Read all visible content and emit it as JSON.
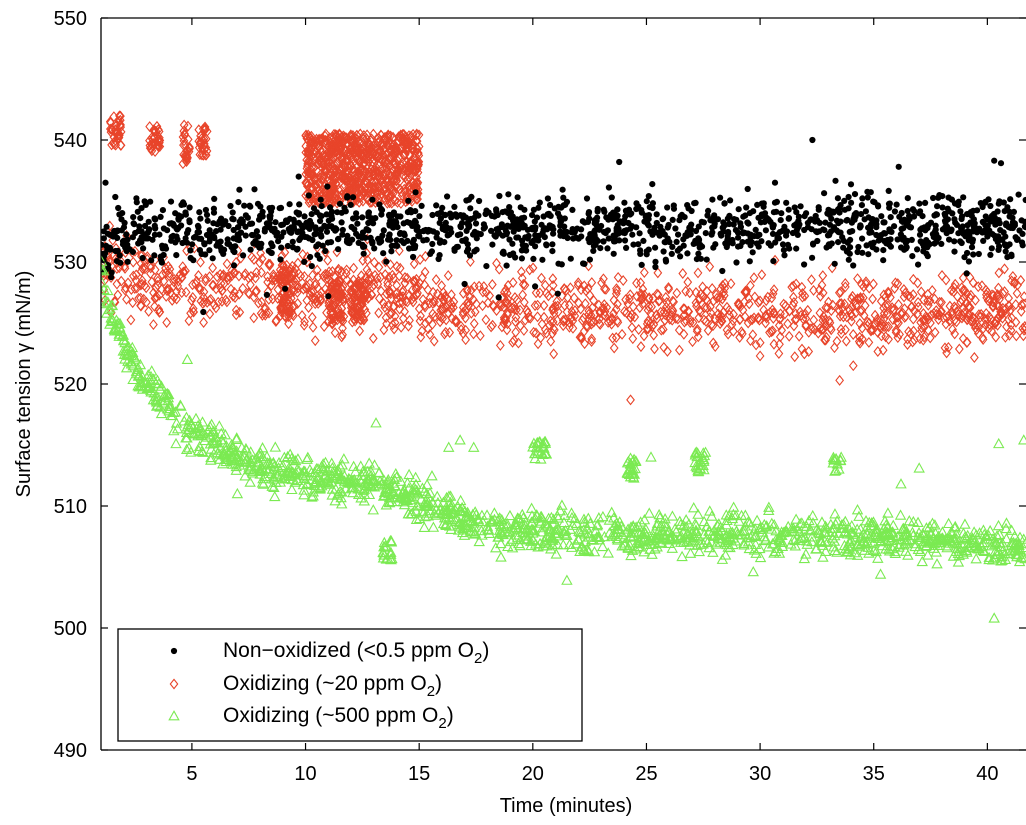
{
  "chart_data": {
    "type": "scatter",
    "title": "",
    "xlabel": "Time  (minutes)",
    "ylabel": "Surface tension γ  (mN/m)",
    "xlim": [
      1,
      41.7
    ],
    "ylim": [
      490,
      550
    ],
    "xticks": [
      5,
      10,
      15,
      20,
      25,
      30,
      35,
      40
    ],
    "yticks": [
      490,
      500,
      510,
      520,
      530,
      540,
      550
    ],
    "grid": false,
    "legend_position": "bottom-left",
    "series": [
      {
        "name": "Non−oxidized (<0.5 ppm O",
        "subscript": "2",
        "name_suffix": ")",
        "marker": "dot",
        "color": "#000000",
        "trend": {
          "x": [
            1.0,
            1.5,
            3,
            5,
            10,
            15,
            20,
            30,
            41.7
          ],
          "y": [
            530.5,
            532.0,
            532.5,
            532.6,
            532.7,
            532.8,
            532.8,
            532.9,
            533.0
          ]
        },
        "spread": 1.3,
        "outliers": [
          [
            1.2,
            536.5
          ],
          [
            9.7,
            537.0
          ],
          [
            23.8,
            538.2
          ],
          [
            32.3,
            540.0
          ],
          [
            36.1,
            537.8
          ],
          [
            40.3,
            538.3
          ],
          [
            40.6,
            538.1
          ],
          [
            17.0,
            528.2
          ],
          [
            18.5,
            527.1
          ],
          [
            20.1,
            528.0
          ],
          [
            21.1,
            527.4
          ],
          [
            11.0,
            527.2
          ],
          [
            5.5,
            525.9
          ],
          [
            8.3,
            527.3
          ],
          [
            9.1,
            527.8
          ]
        ]
      },
      {
        "name": "Oxidizing (~20 ppm O",
        "subscript": "2",
        "name_suffix": ")",
        "marker": "diamond",
        "color": "#e8442a",
        "trend": {
          "x": [
            1.0,
            1.8,
            5,
            10,
            14.9,
            15.1,
            20,
            30,
            41.7
          ],
          "y": [
            530.5,
            528.5,
            528.0,
            527.5,
            527.5,
            526.5,
            526.0,
            526.0,
            526.0
          ]
        },
        "spread": 1.5,
        "clusters": [
          {
            "x": [
              1.4,
              1.9
            ],
            "y": [
              539.5,
              542.0
            ]
          },
          {
            "x": [
              3.1,
              3.6
            ],
            "y": [
              539.0,
              541.2
            ]
          },
          {
            "x": [
              4.6,
              4.9
            ],
            "y": [
              538.0,
              541.3
            ]
          },
          {
            "x": [
              5.3,
              5.7
            ],
            "y": [
              538.6,
              541.2
            ]
          },
          {
            "x": [
              10.0,
              15.0
            ],
            "y": [
              534.8,
              540.5
            ]
          },
          {
            "x": [
              11.0,
              11.6
            ],
            "y": [
              525.2,
              528.5
            ]
          },
          {
            "x": [
              12.0,
              12.7
            ],
            "y": [
              525.2,
              528.5
            ]
          },
          {
            "x": [
              8.9,
              9.5
            ],
            "y": [
              525.5,
              529.8
            ]
          }
        ],
        "outliers": [
          [
            24.3,
            518.7
          ],
          [
            33.5,
            520.3
          ],
          [
            34.1,
            521.5
          ],
          [
            22.0,
            528.3
          ],
          [
            30.0,
            522.3
          ]
        ]
      },
      {
        "name": "Oxidizing (~500 ppm O",
        "subscript": "2",
        "name_suffix": ")",
        "marker": "triangle",
        "color": "#7bea52",
        "trend": {
          "x": [
            1.0,
            1.4,
            2,
            3,
            4,
            5,
            6,
            8,
            10,
            12,
            13.5,
            15,
            17,
            19,
            20,
            22,
            25,
            30,
            35,
            40,
            41.7
          ],
          "y": [
            529.5,
            526.0,
            523.0,
            520.0,
            518.0,
            516.0,
            515.0,
            513.0,
            512.5,
            512.0,
            511.5,
            510.5,
            509.0,
            508.0,
            507.8,
            507.8,
            507.7,
            507.6,
            507.5,
            507.0,
            506.5
          ]
        },
        "spread": 0.8,
        "clusters": [
          {
            "x": [
              13.4,
              13.8
            ],
            "y": [
              505.5,
              507.2
            ]
          },
          {
            "x": [
              24.1,
              24.6
            ],
            "y": [
              512.2,
              514.0
            ]
          },
          {
            "x": [
              27.1,
              27.6
            ],
            "y": [
              512.8,
              514.5
            ]
          },
          {
            "x": [
              33.2,
              33.6
            ],
            "y": [
              512.8,
              514.0
            ]
          },
          {
            "x": [
              20.0,
              20.6
            ],
            "y": [
              513.8,
              515.3
            ]
          }
        ],
        "outliers": [
          [
            4.8,
            522.0
          ],
          [
            5.8,
            516.5
          ],
          [
            13.1,
            516.8
          ],
          [
            16.8,
            515.4
          ],
          [
            16.3,
            514.8
          ],
          [
            17.4,
            514.8
          ],
          [
            12.8,
            513.5
          ],
          [
            25.2,
            514.0
          ],
          [
            37.0,
            513.1
          ],
          [
            36.2,
            511.8
          ],
          [
            40.3,
            500.8
          ],
          [
            40.5,
            515.1
          ],
          [
            41.6,
            515.4
          ],
          [
            21.5,
            503.9
          ],
          [
            29.7,
            504.6
          ],
          [
            35.3,
            504.4
          ],
          [
            7.0,
            511.0
          ],
          [
            4.3,
            515.1
          ],
          [
            18.6,
            505.8
          ]
        ]
      }
    ]
  }
}
